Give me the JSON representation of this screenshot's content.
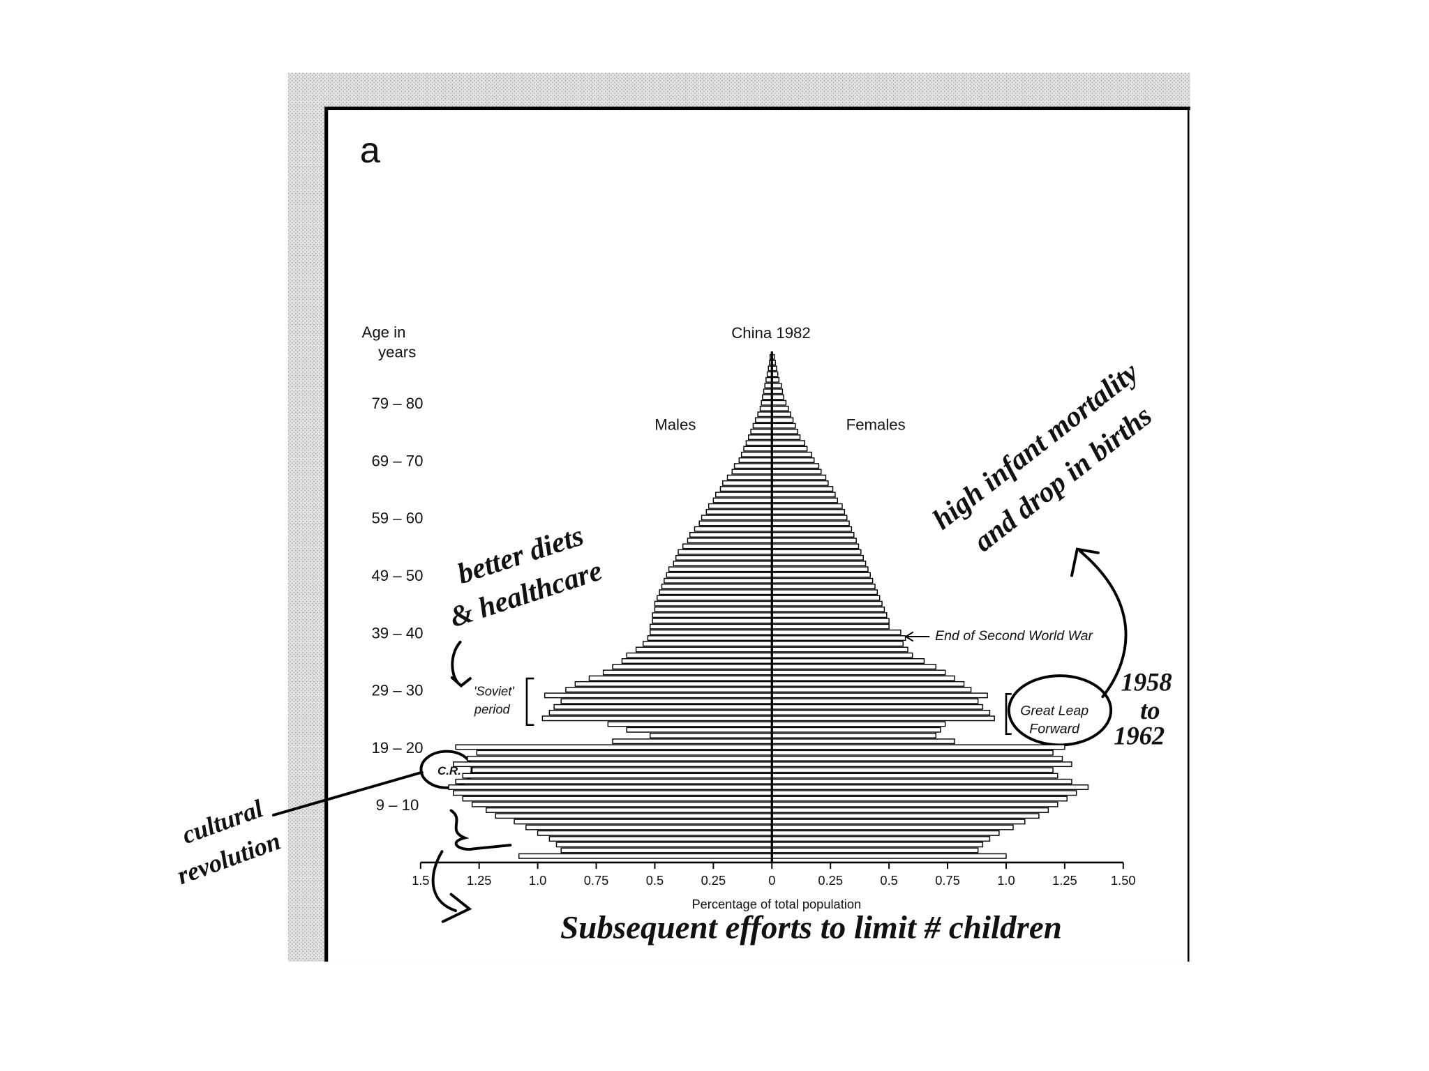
{
  "chart_data": {
    "type": "pyramid",
    "panel_label": "a",
    "title": "China 1982",
    "y_label": [
      "Age in",
      "years"
    ],
    "x_label": "Percentage of total population",
    "categories": [
      null,
      null,
      null,
      null,
      null,
      null,
      null,
      null,
      null,
      "9 – 10",
      null,
      null,
      null,
      null,
      null,
      null,
      null,
      null,
      null,
      "19 – 20",
      null,
      null,
      null,
      null,
      null,
      null,
      null,
      null,
      null,
      "29 – 30",
      null,
      null,
      null,
      null,
      null,
      null,
      null,
      null,
      null,
      "39 – 40",
      null,
      null,
      null,
      null,
      null,
      null,
      null,
      null,
      null,
      "49 – 50",
      null,
      null,
      null,
      null,
      null,
      null,
      null,
      null,
      null,
      "59 – 60",
      null,
      null,
      null,
      null,
      null,
      null,
      null,
      null,
      null,
      "69 – 70",
      null,
      null,
      null,
      null,
      null,
      null,
      null,
      null,
      null,
      "79 – 80",
      null,
      null,
      null,
      null,
      null,
      null,
      null,
      null
    ],
    "series": [
      {
        "name": "Males",
        "side": "left",
        "color": "#000000",
        "values": [
          1.08,
          0.9,
          0.92,
          0.95,
          1.0,
          1.05,
          1.1,
          1.18,
          1.22,
          1.28,
          1.32,
          1.36,
          1.38,
          1.35,
          1.32,
          1.28,
          1.36,
          1.3,
          1.26,
          1.35,
          0.68,
          0.52,
          0.62,
          0.7,
          0.98,
          0.95,
          0.93,
          0.9,
          0.97,
          0.88,
          0.84,
          0.78,
          0.72,
          0.68,
          0.64,
          0.62,
          0.58,
          0.55,
          0.53,
          0.52,
          0.52,
          0.51,
          0.51,
          0.5,
          0.5,
          0.49,
          0.48,
          0.47,
          0.46,
          0.45,
          0.44,
          0.42,
          0.41,
          0.4,
          0.38,
          0.36,
          0.35,
          0.33,
          0.31,
          0.3,
          0.28,
          0.27,
          0.25,
          0.24,
          0.22,
          0.21,
          0.19,
          0.17,
          0.16,
          0.14,
          0.13,
          0.12,
          0.11,
          0.1,
          0.09,
          0.08,
          0.07,
          0.06,
          0.05,
          0.045,
          0.04,
          0.035,
          0.03,
          0.025,
          0.02,
          0.015,
          0.01,
          0.008
        ]
      },
      {
        "name": "Females",
        "side": "right",
        "color": "#000000",
        "values": [
          1.0,
          0.88,
          0.9,
          0.93,
          0.97,
          1.03,
          1.08,
          1.14,
          1.18,
          1.22,
          1.26,
          1.3,
          1.35,
          1.28,
          1.22,
          1.2,
          1.28,
          1.24,
          1.2,
          1.25,
          0.78,
          0.7,
          0.72,
          0.74,
          0.95,
          0.93,
          0.9,
          0.88,
          0.92,
          0.85,
          0.82,
          0.78,
          0.74,
          0.7,
          0.65,
          0.6,
          0.58,
          0.56,
          0.57,
          0.55,
          0.5,
          0.5,
          0.49,
          0.48,
          0.47,
          0.46,
          0.45,
          0.44,
          0.43,
          0.42,
          0.41,
          0.4,
          0.39,
          0.38,
          0.37,
          0.36,
          0.35,
          0.34,
          0.33,
          0.32,
          0.31,
          0.3,
          0.28,
          0.27,
          0.26,
          0.24,
          0.23,
          0.21,
          0.2,
          0.18,
          0.17,
          0.15,
          0.14,
          0.12,
          0.11,
          0.1,
          0.09,
          0.08,
          0.07,
          0.06,
          0.05,
          0.045,
          0.04,
          0.03,
          0.025,
          0.02,
          0.015,
          0.01
        ]
      }
    ],
    "xlim": [
      -1.5,
      1.5
    ],
    "xticks": [
      {
        "value": -1.5,
        "label": "1.5"
      },
      {
        "value": -1.25,
        "label": "1.25"
      },
      {
        "value": -1.0,
        "label": "1.0"
      },
      {
        "value": -0.75,
        "label": "0.75"
      },
      {
        "value": -0.5,
        "label": "0.5"
      },
      {
        "value": -0.25,
        "label": "0.25"
      },
      0,
      0.25,
      0.5,
      0.75,
      {
        "value": 1.0,
        "label": "1.0"
      },
      1.25,
      {
        "value": 1.5,
        "label": "1.50"
      }
    ],
    "annotations": {
      "ww2": "End of Second World War",
      "soviet": [
        "'Soviet'",
        "period"
      ],
      "great_leap": [
        "Great Leap",
        "Forward"
      ],
      "cultural_revolution": "C.R."
    }
  },
  "handwritten_notes": {
    "diets": [
      "better diets",
      "& healthcare"
    ],
    "infant": [
      "high infant mortality",
      "and drop in births"
    ],
    "years": [
      "1958",
      "to",
      "1962"
    ],
    "cultural": [
      "cultural",
      "revolution"
    ],
    "limit": "Subsequent efforts to limit # children"
  }
}
